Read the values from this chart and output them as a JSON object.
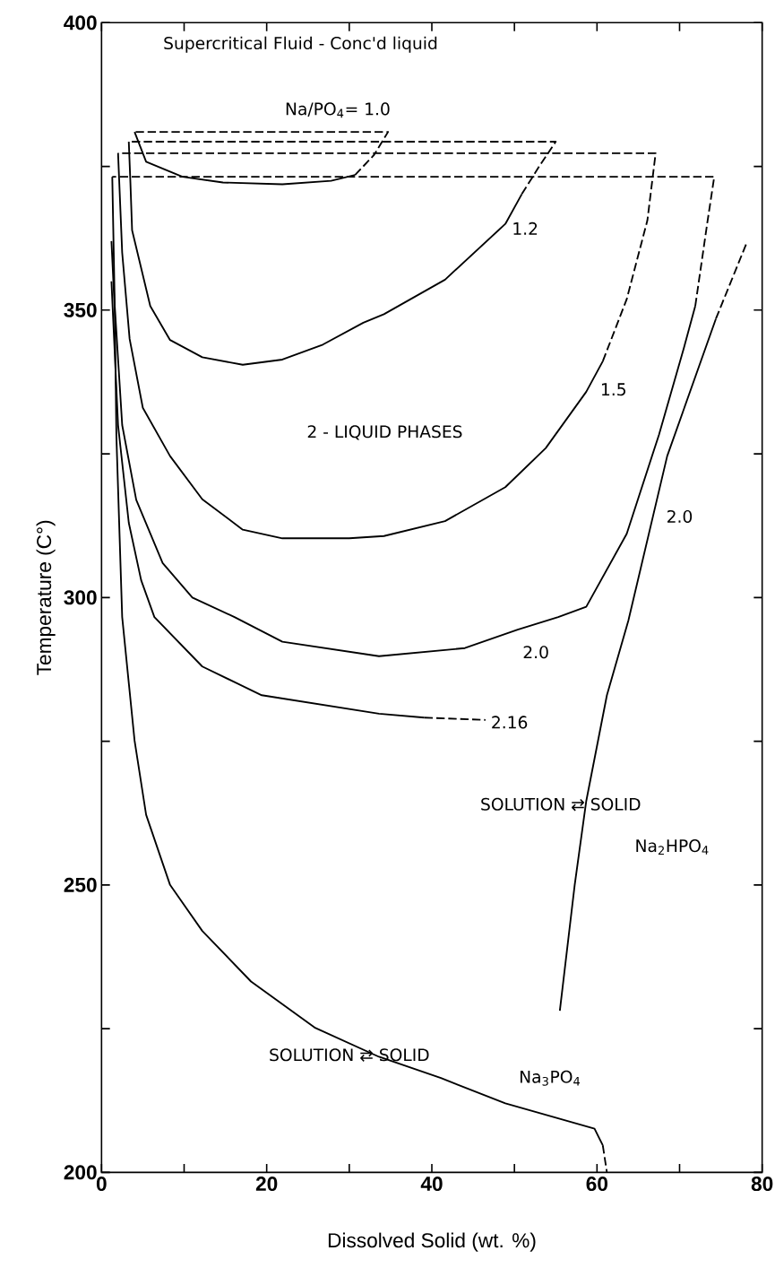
{
  "chart_data": {
    "type": "line",
    "xlabel": "Dissolved Solid (wt. %)",
    "ylabel": "Temperature (C°)",
    "xlim": [
      0,
      80
    ],
    "ylim": [
      200,
      400
    ],
    "xticks": [
      0,
      {
        "value": 10,
        "label": null
      },
      20,
      {
        "value": 30,
        "label": null
      },
      40,
      {
        "value": 50,
        "label": null
      },
      60,
      {
        "value": 70,
        "label": null
      },
      80
    ],
    "yticks": [
      200,
      {
        "value": 225,
        "label": null
      },
      250,
      {
        "value": 275,
        "label": null
      },
      300,
      {
        "value": 325,
        "label": null
      },
      350,
      {
        "value": 375,
        "label": null
      },
      400
    ],
    "grid": false,
    "series": [
      {
        "color": "#000000",
        "line_style": "solid",
        "x": [
          4.0,
          5.4,
          9.8,
          14.7,
          21.9,
          27.8,
          30.7
        ],
        "values": [
          381,
          375.8,
          373.2,
          372.2,
          371.9,
          372.5,
          373.5
        ]
      },
      {
        "color": "#000000",
        "line_style": "dashed",
        "x": [
          30.7,
          33.0,
          34.7,
          4.0
        ],
        "values": [
          373.5,
          377,
          381,
          381
        ]
      },
      {
        "color": "#000000",
        "line_style": "solid",
        "x": [
          3.3,
          3.5,
          3.7,
          5.9,
          8.3,
          12.2,
          17.1,
          21.9,
          26.8,
          31.7,
          34.2,
          41.6,
          48.9,
          50.9
        ],
        "values": [
          379.3,
          372,
          363.9,
          350.7,
          344.8,
          341.8,
          340.5,
          341.4,
          344.0,
          347.8,
          349.3,
          355.3,
          365.0,
          370.2
        ]
      },
      {
        "color": "#000000",
        "line_style": "dashed",
        "x": [
          50.9,
          53.0,
          55.0,
          3.3
        ],
        "values": [
          370.2,
          375,
          379.3,
          379.3
        ]
      },
      {
        "color": "#000000",
        "line_style": "solid",
        "x": [
          2.0,
          2.5,
          3.4,
          5.0,
          8.3,
          12.2,
          17.1,
          21.9,
          30.0,
          34.2,
          41.6,
          48.9,
          53.8,
          58.7,
          60.7
        ],
        "values": [
          377.3,
          360,
          345,
          333,
          324.6,
          317.1,
          311.8,
          310.3,
          310.3,
          310.7,
          313.3,
          319.2,
          326.0,
          335.8,
          341.1
        ]
      },
      {
        "color": "#000000",
        "line_style": "dashed",
        "x": [
          60.7,
          63.6,
          66.1,
          67.1,
          2.0
        ],
        "values": [
          341.1,
          351.9,
          365.6,
          377.3,
          377.3
        ]
      },
      {
        "color": "#000000",
        "line_style": "solid",
        "x": [
          1.3,
          1.6,
          2.5,
          4.2,
          7.4,
          11.0,
          16.1,
          21.9,
          33.6,
          44.0,
          50.4,
          55.3,
          58.7,
          63.6,
          67.5,
          70.5,
          71.9
        ],
        "values": [
          373.2,
          350.7,
          330,
          317,
          306,
          300,
          296.6,
          292.3,
          289.8,
          291.2,
          294.4,
          296.6,
          298.4,
          311.1,
          328.3,
          343.3,
          350.7
        ]
      },
      {
        "color": "#000000",
        "line_style": "dashed",
        "x": [
          71.9,
          73.4,
          74.2,
          1.3
        ],
        "values": [
          350.7,
          365.6,
          373.2,
          373.2
        ]
      },
      {
        "color": "#000000",
        "line_style": "solid",
        "x": [
          1.2,
          2.0,
          3.3,
          4.8,
          6.4,
          12.2,
          19.4,
          33.6,
          39.1
        ],
        "values": [
          355,
          330,
          313,
          303,
          296.6,
          288.0,
          283.0,
          279.8,
          279.1
        ]
      },
      {
        "color": "#000000",
        "line_style": "dashed",
        "x": [
          39.1,
          46.5
        ],
        "values": [
          279.1,
          278.7
        ]
      },
      {
        "color": "#000000",
        "line_style": "solid",
        "x": [
          1.2,
          1.6,
          1.8,
          2.5,
          4.0,
          5.4,
          8.3,
          12.2,
          18.1,
          25.8,
          33.6,
          41.1,
          48.9,
          59.7,
          60.7
        ],
        "values": [
          362,
          350,
          328,
          296.6,
          275.1,
          262.2,
          250,
          242.0,
          233.2,
          225.2,
          220.1,
          216.4,
          212.0,
          207.6,
          204.7
        ]
      },
      {
        "color": "#000000",
        "line_style": "dashed",
        "x": [
          60.7,
          61.2
        ],
        "values": [
          204.7,
          200
        ]
      },
      {
        "color": "#000000",
        "line_style": "solid",
        "x": [
          55.5,
          57.3,
          58.7,
          61.2,
          63.8,
          68.5,
          74.4
        ],
        "values": [
          228.1,
          250,
          264.6,
          283,
          296,
          324.6,
          348.5
        ]
      },
      {
        "color": "#000000",
        "line_style": "dashed",
        "x": [
          74.4,
          78.1
        ],
        "values": [
          348.5,
          361.6
        ]
      }
    ],
    "annotations": [
      "Supercritical Fluid - Conc'd liquid",
      "Na/PO$_{4}$= 1.0",
      "1.2",
      "2 - LIQUID PHASES",
      "1.5",
      "2.0",
      "2.0",
      "2.16",
      "SOLUTION ⇄ SOLID",
      "Na$_{2}$HPO$_{4}$",
      "SOLUTION ⇄ SOLID",
      "Na$_{3}$PO$_{4}$"
    ]
  }
}
